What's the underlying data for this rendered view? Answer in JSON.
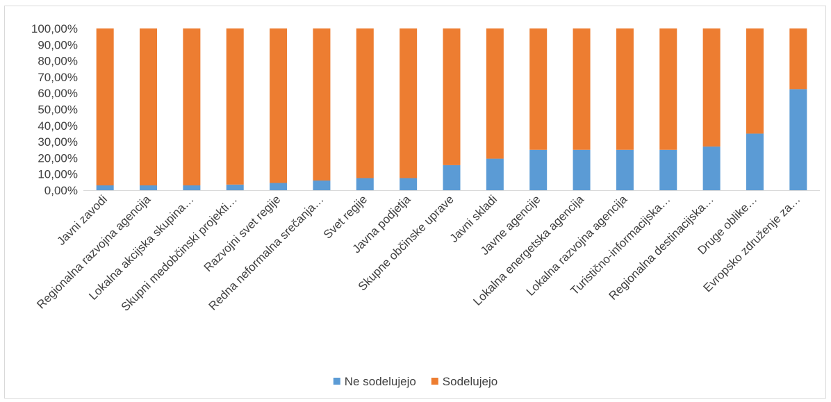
{
  "chart_data": {
    "type": "bar",
    "stacked": true,
    "categories": [
      "Javni zavodi",
      "Regionalna razvojna agencija",
      "Lokalna akcijska skupina…",
      "Skupni medobčinski projekti…",
      "Razvojni svet regije",
      "Redna neformalna srečanja…",
      "Svet regije",
      "Javna podjetja",
      "Skupne občinske uprave",
      "Javni skladi",
      "Javne agencije",
      "Lokalna energetska agencija",
      "Lokalna razvojna agencija",
      "Turistično-informacijska…",
      "Regionalna destinacijska…",
      "Druge oblike…",
      "Evropsko združenje za…"
    ],
    "series": [
      {
        "name": "Ne sodelujejo",
        "color": "#5b9bd5",
        "values": [
          0.03,
          0.03,
          0.03,
          0.035,
          0.045,
          0.06,
          0.075,
          0.075,
          0.155,
          0.195,
          0.25,
          0.25,
          0.25,
          0.25,
          0.27,
          0.35,
          0.625
        ]
      },
      {
        "name": "Sodelujejo",
        "color": "#ed7d31",
        "values": [
          0.97,
          0.97,
          0.97,
          0.965,
          0.955,
          0.94,
          0.925,
          0.925,
          0.845,
          0.805,
          0.75,
          0.75,
          0.75,
          0.75,
          0.73,
          0.65,
          0.375
        ]
      }
    ],
    "y_ticks": [
      "0,00%",
      "10,00%",
      "20,00%",
      "30,00%",
      "40,00%",
      "50,00%",
      "60,00%",
      "70,00%",
      "80,00%",
      "90,00%",
      "100,00%"
    ],
    "ylim": [
      0,
      1
    ],
    "grid": false,
    "legend_position": "bottom"
  }
}
